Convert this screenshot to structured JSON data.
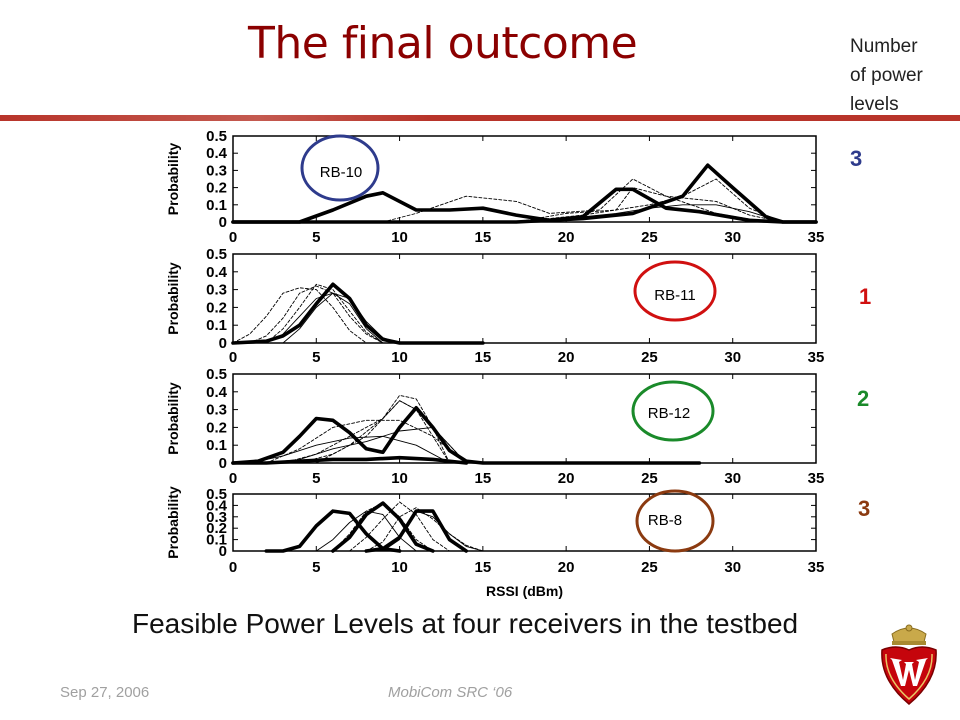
{
  "slide": {
    "title": "The final outcome",
    "levels_header": [
      "Number",
      "of power",
      "levels"
    ],
    "levels": [
      {
        "value": "3",
        "color": "#2e3b8c"
      },
      {
        "value": "1",
        "color": "#d01010"
      },
      {
        "value": "2",
        "color": "#1a8a2a"
      },
      {
        "value": "3",
        "color": "#8b3a10"
      }
    ],
    "caption": "Feasible Power Levels at four receivers in the testbed",
    "footer_date": "Sep 27, 2006",
    "footer_event": "MobiCom SRC ‘06",
    "accent_color": "#b8342a",
    "title_color": "#8b0000"
  },
  "chart_data": [
    {
      "type": "line",
      "label": "RB-10",
      "label_circle_color": "#2e3b8c",
      "ylabel": "Probability",
      "xlim": [
        0,
        35
      ],
      "ylim": [
        0,
        0.5
      ],
      "xticks": [
        "0",
        "5",
        "10",
        "15",
        "20",
        "25",
        "30",
        "35"
      ],
      "yticks": [
        "0",
        "0.1",
        "0.2",
        "0.3",
        "0.4",
        "0.5"
      ],
      "series": [
        {
          "style": "thick",
          "x": [
            0,
            4,
            6,
            8,
            9,
            11,
            13,
            15,
            17,
            19,
            21,
            23,
            24,
            26,
            28,
            31,
            33,
            35
          ],
          "y": [
            0,
            0,
            0.07,
            0.15,
            0.17,
            0.07,
            0.07,
            0.08,
            0.04,
            0.01,
            0.03,
            0.19,
            0.19,
            0.08,
            0.06,
            0.01,
            0,
            0
          ]
        },
        {
          "style": "thick",
          "x": [
            0,
            17,
            21,
            24,
            27,
            28.5,
            30,
            32,
            33,
            35
          ],
          "y": [
            0,
            0,
            0.02,
            0.05,
            0.15,
            0.33,
            0.2,
            0.03,
            0,
            0
          ]
        },
        {
          "style": "dashed",
          "x": [
            9,
            11,
            14,
            17,
            19,
            22,
            24,
            26,
            29,
            31,
            33
          ],
          "y": [
            0,
            0.05,
            0.15,
            0.12,
            0.05,
            0.07,
            0.25,
            0.15,
            0.12,
            0.04,
            0
          ]
        },
        {
          "style": "dashed",
          "x": [
            17,
            20,
            23,
            24,
            26,
            29,
            32
          ],
          "y": [
            0,
            0.05,
            0.07,
            0.2,
            0.15,
            0.05,
            0
          ]
        },
        {
          "style": "dashed",
          "x": [
            17,
            21,
            25,
            27,
            29,
            31,
            33
          ],
          "y": [
            0,
            0.04,
            0.1,
            0.15,
            0.25,
            0.08,
            0
          ]
        },
        {
          "style": "thin",
          "x": [
            17,
            20,
            23,
            25,
            27,
            29,
            31,
            33
          ],
          "y": [
            0,
            0.02,
            0.05,
            0.08,
            0.1,
            0.1,
            0.06,
            0
          ]
        }
      ]
    },
    {
      "type": "line",
      "label": "RB-11",
      "label_circle_color": "#d01010",
      "ylabel": "Probability",
      "xlim": [
        0,
        35
      ],
      "ylim": [
        0,
        0.5
      ],
      "xticks": [
        "0",
        "5",
        "10",
        "15",
        "20",
        "25",
        "30",
        "35"
      ],
      "yticks": [
        "0",
        "0.1",
        "0.2",
        "0.3",
        "0.4",
        "0.5"
      ],
      "series": [
        {
          "style": "thick",
          "x": [
            0,
            2,
            3,
            4,
            5,
            6,
            7,
            8,
            9,
            10,
            15
          ],
          "y": [
            0,
            0.01,
            0.04,
            0.1,
            0.22,
            0.33,
            0.25,
            0.1,
            0.02,
            0,
            0
          ]
        },
        {
          "style": "dashed",
          "x": [
            0,
            1,
            2,
            3,
            4,
            5,
            6,
            7,
            8
          ],
          "y": [
            0,
            0.05,
            0.15,
            0.28,
            0.31,
            0.3,
            0.2,
            0.07,
            0
          ]
        },
        {
          "style": "dashed",
          "x": [
            1,
            2,
            3,
            4,
            5,
            6,
            7,
            8,
            9
          ],
          "y": [
            0,
            0.04,
            0.14,
            0.28,
            0.32,
            0.28,
            0.15,
            0.05,
            0
          ]
        },
        {
          "style": "dashed",
          "x": [
            2,
            3,
            4,
            5,
            6,
            7,
            8,
            9
          ],
          "y": [
            0,
            0.08,
            0.2,
            0.33,
            0.3,
            0.18,
            0.06,
            0
          ]
        },
        {
          "style": "thin",
          "x": [
            2,
            3,
            4,
            5,
            6,
            7,
            8,
            9
          ],
          "y": [
            0,
            0.05,
            0.15,
            0.25,
            0.28,
            0.22,
            0.08,
            0
          ]
        },
        {
          "style": "thin",
          "x": [
            3,
            4,
            5,
            6,
            7,
            8,
            9,
            10
          ],
          "y": [
            0,
            0.08,
            0.2,
            0.28,
            0.25,
            0.12,
            0.03,
            0
          ]
        }
      ]
    },
    {
      "type": "line",
      "label": "RB-12",
      "label_circle_color": "#1a8a2a",
      "ylabel": "Probability",
      "xlim": [
        0,
        35
      ],
      "ylim": [
        0,
        0.5
      ],
      "xticks": [
        "0",
        "5",
        "10",
        "15",
        "20",
        "25",
        "30",
        "35"
      ],
      "yticks": [
        "0",
        "0.1",
        "0.2",
        "0.3",
        "0.4",
        "0.5"
      ],
      "series": [
        {
          "style": "thick",
          "x": [
            0,
            1.5,
            3,
            4,
            5,
            6,
            7,
            8,
            9,
            10,
            11,
            12,
            13,
            14,
            15,
            28
          ],
          "y": [
            0,
            0.01,
            0.06,
            0.15,
            0.25,
            0.24,
            0.17,
            0.08,
            0.06,
            0.2,
            0.31,
            0.2,
            0.07,
            0.01,
            0,
            0
          ]
        },
        {
          "style": "thick",
          "x": [
            0,
            2,
            4,
            6,
            8,
            10,
            12,
            14
          ],
          "y": [
            0,
            0,
            0.01,
            0.02,
            0.02,
            0.03,
            0.02,
            0
          ]
        },
        {
          "style": "dashed",
          "x": [
            3,
            5,
            7,
            8,
            9,
            10,
            11,
            12,
            13
          ],
          "y": [
            0,
            0.05,
            0.15,
            0.2,
            0.25,
            0.38,
            0.36,
            0.2,
            0
          ]
        },
        {
          "style": "dashed",
          "x": [
            2,
            4,
            6,
            8,
            10,
            12,
            14
          ],
          "y": [
            0,
            0.08,
            0.2,
            0.24,
            0.24,
            0.15,
            0
          ]
        },
        {
          "style": "dashed",
          "x": [
            4,
            6,
            8,
            9,
            10,
            11,
            13
          ],
          "y": [
            0,
            0.05,
            0.15,
            0.25,
            0.35,
            0.3,
            0
          ]
        },
        {
          "style": "thin",
          "x": [
            1,
            3,
            5,
            7,
            9,
            11,
            13
          ],
          "y": [
            0,
            0.04,
            0.1,
            0.14,
            0.15,
            0.1,
            0
          ]
        },
        {
          "style": "thin",
          "x": [
            2,
            4,
            6,
            8,
            10,
            12,
            14
          ],
          "y": [
            0,
            0.02,
            0.08,
            0.12,
            0.18,
            0.2,
            0
          ]
        },
        {
          "style": "dashed",
          "x": [
            5,
            7,
            9,
            10,
            11,
            13,
            14
          ],
          "y": [
            0,
            0.1,
            0.25,
            0.35,
            0.3,
            0.1,
            0
          ]
        }
      ]
    },
    {
      "type": "line",
      "label": "RB-8",
      "label_circle_color": "#8b3a10",
      "ylabel": "Probability",
      "xlabel": "RSSI (dBm)",
      "xlim": [
        0,
        35
      ],
      "ylim": [
        0,
        0.5
      ],
      "xticks": [
        "0",
        "5",
        "10",
        "15",
        "20",
        "25",
        "30",
        "35"
      ],
      "yticks": [
        "0",
        "0.1",
        "0.2",
        "0.3",
        "0.4",
        "0.5"
      ],
      "series": [
        {
          "style": "thick",
          "x": [
            2,
            3,
            4,
            5,
            6,
            7,
            8,
            9,
            10
          ],
          "y": [
            0,
            0,
            0.04,
            0.22,
            0.35,
            0.33,
            0.15,
            0.02,
            0
          ]
        },
        {
          "style": "thick",
          "x": [
            6,
            7,
            8,
            9,
            10,
            11,
            12
          ],
          "y": [
            0,
            0.12,
            0.32,
            0.42,
            0.28,
            0.06,
            0
          ]
        },
        {
          "style": "thick",
          "x": [
            8,
            9,
            10,
            11,
            12,
            13,
            14
          ],
          "y": [
            0,
            0.02,
            0.12,
            0.35,
            0.35,
            0.1,
            0
          ]
        },
        {
          "style": "dashed",
          "x": [
            6,
            7,
            8,
            9,
            10,
            11,
            12
          ],
          "y": [
            0,
            0.15,
            0.35,
            0.42,
            0.3,
            0.1,
            0
          ]
        },
        {
          "style": "dashed",
          "x": [
            7,
            8,
            9,
            10,
            11,
            12,
            13
          ],
          "y": [
            0,
            0.12,
            0.28,
            0.43,
            0.32,
            0.1,
            0
          ]
        },
        {
          "style": "dashed",
          "x": [
            8,
            9,
            10,
            11,
            12,
            13,
            14,
            15
          ],
          "y": [
            0,
            0.08,
            0.3,
            0.38,
            0.28,
            0.15,
            0.05,
            0
          ]
        },
        {
          "style": "thin",
          "x": [
            5,
            6,
            7,
            8,
            9,
            10,
            11
          ],
          "y": [
            0,
            0.1,
            0.25,
            0.35,
            0.32,
            0.12,
            0
          ]
        },
        {
          "style": "thin",
          "x": [
            9,
            10,
            11,
            12,
            13,
            14,
            15
          ],
          "y": [
            0,
            0.1,
            0.35,
            0.3,
            0.15,
            0.04,
            0
          ]
        }
      ]
    }
  ]
}
